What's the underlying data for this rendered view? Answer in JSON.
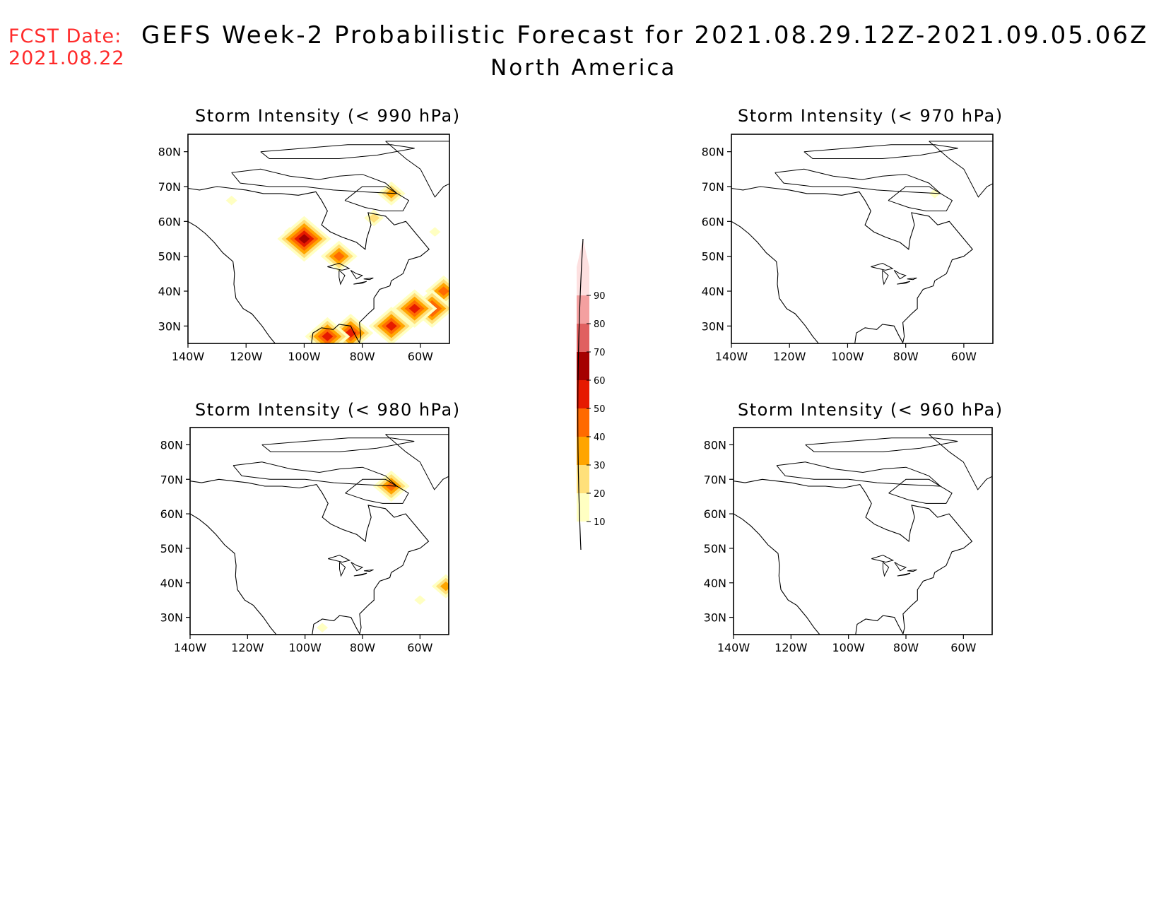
{
  "forecast_date": {
    "label": "FCST Date:",
    "value": "2021.08.22"
  },
  "title": "GEFS Week-2 Probabilistic Forecast for 2021.08.29.12Z-2021.09.05.06Z",
  "subtitle": "North America",
  "colors": {
    "forecast_date": "#ff2a2a",
    "coastline": "#000000",
    "levels": [
      "#ffffc2",
      "#ffe07a",
      "#ffa500",
      "#ff6a00",
      "#e61a00",
      "#a50000",
      "#e06060",
      "#f4a0a0",
      "#fde0e0"
    ]
  },
  "colorbar": {
    "labels": [
      "10",
      "20",
      "30",
      "40",
      "50",
      "60",
      "70",
      "80",
      "90"
    ]
  },
  "chart_data": [
    {
      "type": "map",
      "title": "Storm Intensity (< 990 hPa)",
      "lon_ticks": [
        "140W",
        "120W",
        "100W",
        "80W",
        "60W"
      ],
      "lat_ticks": [
        "30N",
        "40N",
        "50N",
        "60N",
        "70N",
        "80N"
      ],
      "probability_blobs": [
        {
          "lon": -70,
          "lat": 68,
          "prob": 35
        },
        {
          "lon": -76,
          "lat": 61,
          "prob": 20
        },
        {
          "lon": -100,
          "lat": 55,
          "prob": 65
        },
        {
          "lon": -105,
          "lat": 57,
          "prob": 15
        },
        {
          "lon": -88,
          "lat": 50,
          "prob": 40
        },
        {
          "lon": -84,
          "lat": 28,
          "prob": 55
        },
        {
          "lon": -92,
          "lat": 27,
          "prob": 55
        },
        {
          "lon": -70,
          "lat": 30,
          "prob": 50
        },
        {
          "lon": -62,
          "lat": 35,
          "prob": 55
        },
        {
          "lon": -56,
          "lat": 35,
          "prob": 50
        },
        {
          "lon": -52,
          "lat": 40,
          "prob": 40
        },
        {
          "lon": -55,
          "lat": 57,
          "prob": 15
        },
        {
          "lon": -125,
          "lat": 66,
          "prob": 10
        }
      ]
    },
    {
      "type": "map",
      "title": "Storm Intensity (< 970 hPa)",
      "lon_ticks": [
        "140W",
        "120W",
        "100W",
        "80W",
        "60W"
      ],
      "lat_ticks": [
        "30N",
        "40N",
        "50N",
        "60N",
        "70N",
        "80N"
      ],
      "probability_blobs": [
        {
          "lon": -70,
          "lat": 68,
          "prob": 10
        }
      ]
    },
    {
      "type": "map",
      "title": "Storm Intensity (< 980 hPa)",
      "lon_ticks": [
        "140W",
        "120W",
        "100W",
        "80W",
        "60W"
      ],
      "lat_ticks": [
        "30N",
        "40N",
        "50N",
        "60N",
        "70N",
        "80N"
      ],
      "probability_blobs": [
        {
          "lon": -70,
          "lat": 68,
          "prob": 40
        },
        {
          "lon": -51,
          "lat": 39,
          "prob": 35
        },
        {
          "lon": -60,
          "lat": 35,
          "prob": 10
        },
        {
          "lon": -94,
          "lat": 27,
          "prob": 10
        }
      ]
    },
    {
      "type": "map",
      "title": "Storm Intensity (< 960 hPa)",
      "lon_ticks": [
        "140W",
        "120W",
        "100W",
        "80W",
        "60W"
      ],
      "lat_ticks": [
        "30N",
        "40N",
        "50N",
        "60N",
        "70N",
        "80N"
      ],
      "probability_blobs": []
    }
  ]
}
